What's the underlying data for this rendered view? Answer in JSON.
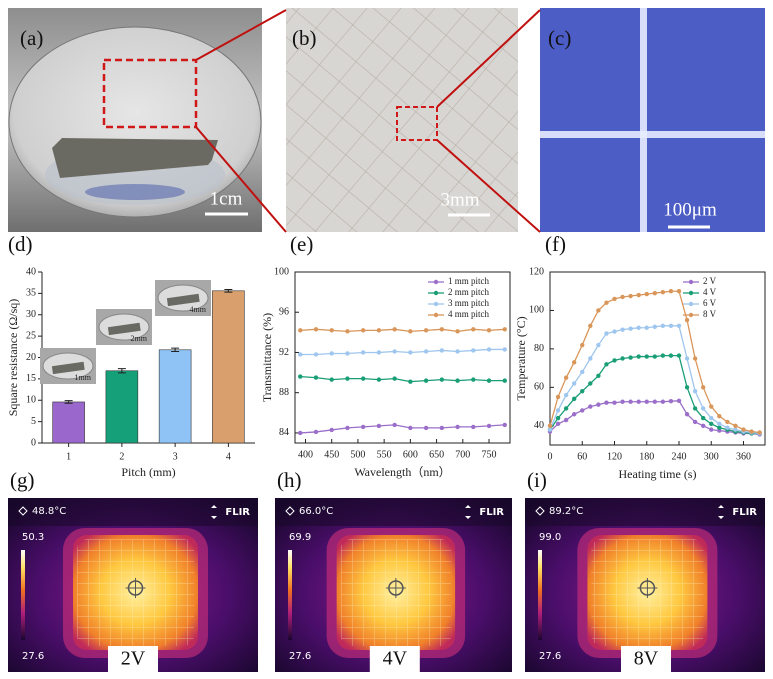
{
  "photos": [
    {
      "label": "(a)",
      "scale": "1cm"
    },
    {
      "label": "(b)",
      "scale": "3mm"
    },
    {
      "label": "(c)",
      "scale": "100μm"
    }
  ],
  "chart_data": [
    {
      "type": "bar",
      "panel": "(d)",
      "xlabel": "Pitch (mm)",
      "ylabel": "Square resistance (Ω/sq)",
      "categories": [
        "1",
        "2",
        "3",
        "4"
      ],
      "values": [
        9.6,
        16.9,
        21.8,
        35.6
      ],
      "errors": [
        0.3,
        0.5,
        0.4,
        0.3
      ],
      "colors": [
        "#9a68cc",
        "#15a07a",
        "#8fc3f5",
        "#d9a06e"
      ],
      "ylim": [
        0,
        40
      ],
      "yticks": [
        0,
        5,
        10,
        15,
        20,
        25,
        30,
        35,
        40
      ],
      "annotations": [
        "1mm",
        "2mm",
        "4mm"
      ]
    },
    {
      "type": "line",
      "panel": "(e)",
      "xlabel": "Wavelength（nm）",
      "ylabel": "Transmittance (%)",
      "x": [
        390,
        420,
        450,
        480,
        510,
        540,
        570,
        600,
        630,
        660,
        690,
        720,
        750,
        780
      ],
      "xlim": [
        380,
        790
      ],
      "xticks": [
        400,
        450,
        500,
        550,
        600,
        650,
        700,
        750
      ],
      "ylim": [
        83,
        100
      ],
      "yticks": [
        84,
        88,
        92,
        96,
        100
      ],
      "legend": "upper right",
      "series": [
        {
          "name": "1 mm pitch",
          "color": "#9b6fc9",
          "values": [
            84.0,
            84.1,
            84.3,
            84.5,
            84.6,
            84.7,
            84.8,
            84.5,
            84.5,
            84.5,
            84.6,
            84.6,
            84.7,
            84.8
          ]
        },
        {
          "name": "2 mm pitch",
          "color": "#1a9e76",
          "values": [
            89.6,
            89.5,
            89.3,
            89.4,
            89.4,
            89.3,
            89.4,
            89.1,
            89.2,
            89.3,
            89.2,
            89.3,
            89.2,
            89.2
          ]
        },
        {
          "name": "3 mm pitch",
          "color": "#9fc6ee",
          "values": [
            91.8,
            91.8,
            91.9,
            91.9,
            92.0,
            92.0,
            92.1,
            92.0,
            92.1,
            92.2,
            92.1,
            92.2,
            92.3,
            92.3
          ]
        },
        {
          "name": "4 mm pitch",
          "color": "#d9965a",
          "values": [
            94.2,
            94.3,
            94.2,
            94.1,
            94.2,
            94.2,
            94.3,
            94.1,
            94.2,
            94.3,
            94.1,
            94.3,
            94.2,
            94.3
          ]
        }
      ]
    },
    {
      "type": "line",
      "panel": "(f)",
      "xlabel": "Heating time (s)",
      "ylabel": "Temperature (°C)",
      "x": [
        0,
        15,
        30,
        45,
        60,
        75,
        90,
        105,
        120,
        135,
        150,
        165,
        180,
        195,
        210,
        225,
        240,
        255,
        270,
        285,
        300,
        315,
        330,
        345,
        360,
        375,
        390
      ],
      "xlim": [
        0,
        400
      ],
      "xticks": [
        0,
        60,
        120,
        180,
        240,
        300,
        360
      ],
      "ylim": [
        30,
        120
      ],
      "yticks": [
        40,
        60,
        80,
        100,
        120
      ],
      "legend": "upper right",
      "series": [
        {
          "name": "2 V",
          "color": "#9b6fc9",
          "values": [
            37,
            41,
            43,
            46,
            48,
            50,
            51,
            52,
            52,
            52.5,
            52.5,
            52.5,
            52.5,
            52.5,
            52.5,
            52.8,
            53,
            46,
            42,
            40,
            38,
            37.5,
            37,
            36.5,
            36,
            36,
            35.5
          ]
        },
        {
          "name": "4 V",
          "color": "#1a9e76",
          "values": [
            38,
            44,
            49,
            54,
            58,
            62,
            66,
            72,
            74,
            75,
            75.5,
            76,
            76,
            76,
            76.5,
            76.5,
            76.5,
            60,
            49,
            44,
            41,
            39,
            38,
            37,
            36.5,
            36,
            36
          ]
        },
        {
          "name": "6 V",
          "color": "#9fc6ee",
          "values": [
            38,
            48,
            56,
            62,
            68,
            75,
            82,
            88,
            89,
            90,
            90.5,
            91,
            91,
            91.5,
            92,
            92,
            92,
            75,
            58,
            49,
            44,
            41,
            39,
            38,
            37,
            36.5,
            36
          ]
        },
        {
          "name": "8 V",
          "color": "#d9965a",
          "values": [
            40,
            55,
            65,
            73,
            82,
            92,
            100,
            104,
            106,
            107,
            107.5,
            108,
            108.5,
            109,
            109.5,
            110,
            110,
            95,
            75,
            60,
            50,
            45,
            42,
            40,
            38,
            37,
            36.5
          ]
        }
      ]
    }
  ],
  "thermal": [
    {
      "label": "(g)",
      "spot": "48.8°C",
      "brand": "FLIR",
      "max": "50.3",
      "min": "27.6",
      "voltage": "2V"
    },
    {
      "label": "(h)",
      "spot": "66.0°C",
      "brand": "FLIR",
      "max": "69.9",
      "min": "27.6",
      "voltage": "4V"
    },
    {
      "label": "(i)",
      "spot": "89.2°C",
      "brand": "FLIR",
      "max": "99.0",
      "min": "27.6",
      "voltage": "8V"
    }
  ]
}
